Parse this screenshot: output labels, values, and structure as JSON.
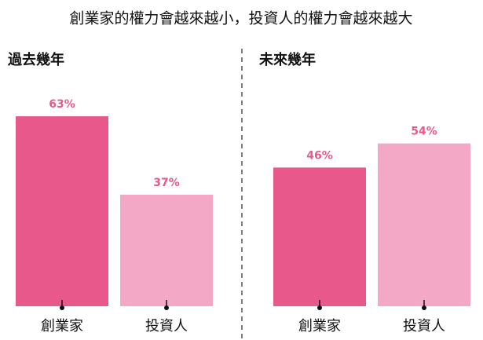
{
  "title": "創業家的權力會越來越小，投資人的權力會越來越大",
  "chart_data": [
    {
      "type": "bar",
      "title": "過去幾年",
      "categories": [
        "創業家",
        "投資人"
      ],
      "values": [
        63,
        37
      ],
      "value_labels": [
        "63%",
        "37%"
      ],
      "colors": [
        "#e8588b",
        "#f3a8c5"
      ]
    },
    {
      "type": "bar",
      "title": "未來幾年",
      "categories": [
        "創業家",
        "投資人"
      ],
      "values": [
        46,
        54
      ],
      "value_labels": [
        "46%",
        "54%"
      ],
      "colors": [
        "#e8588b",
        "#f3a8c5"
      ]
    }
  ]
}
